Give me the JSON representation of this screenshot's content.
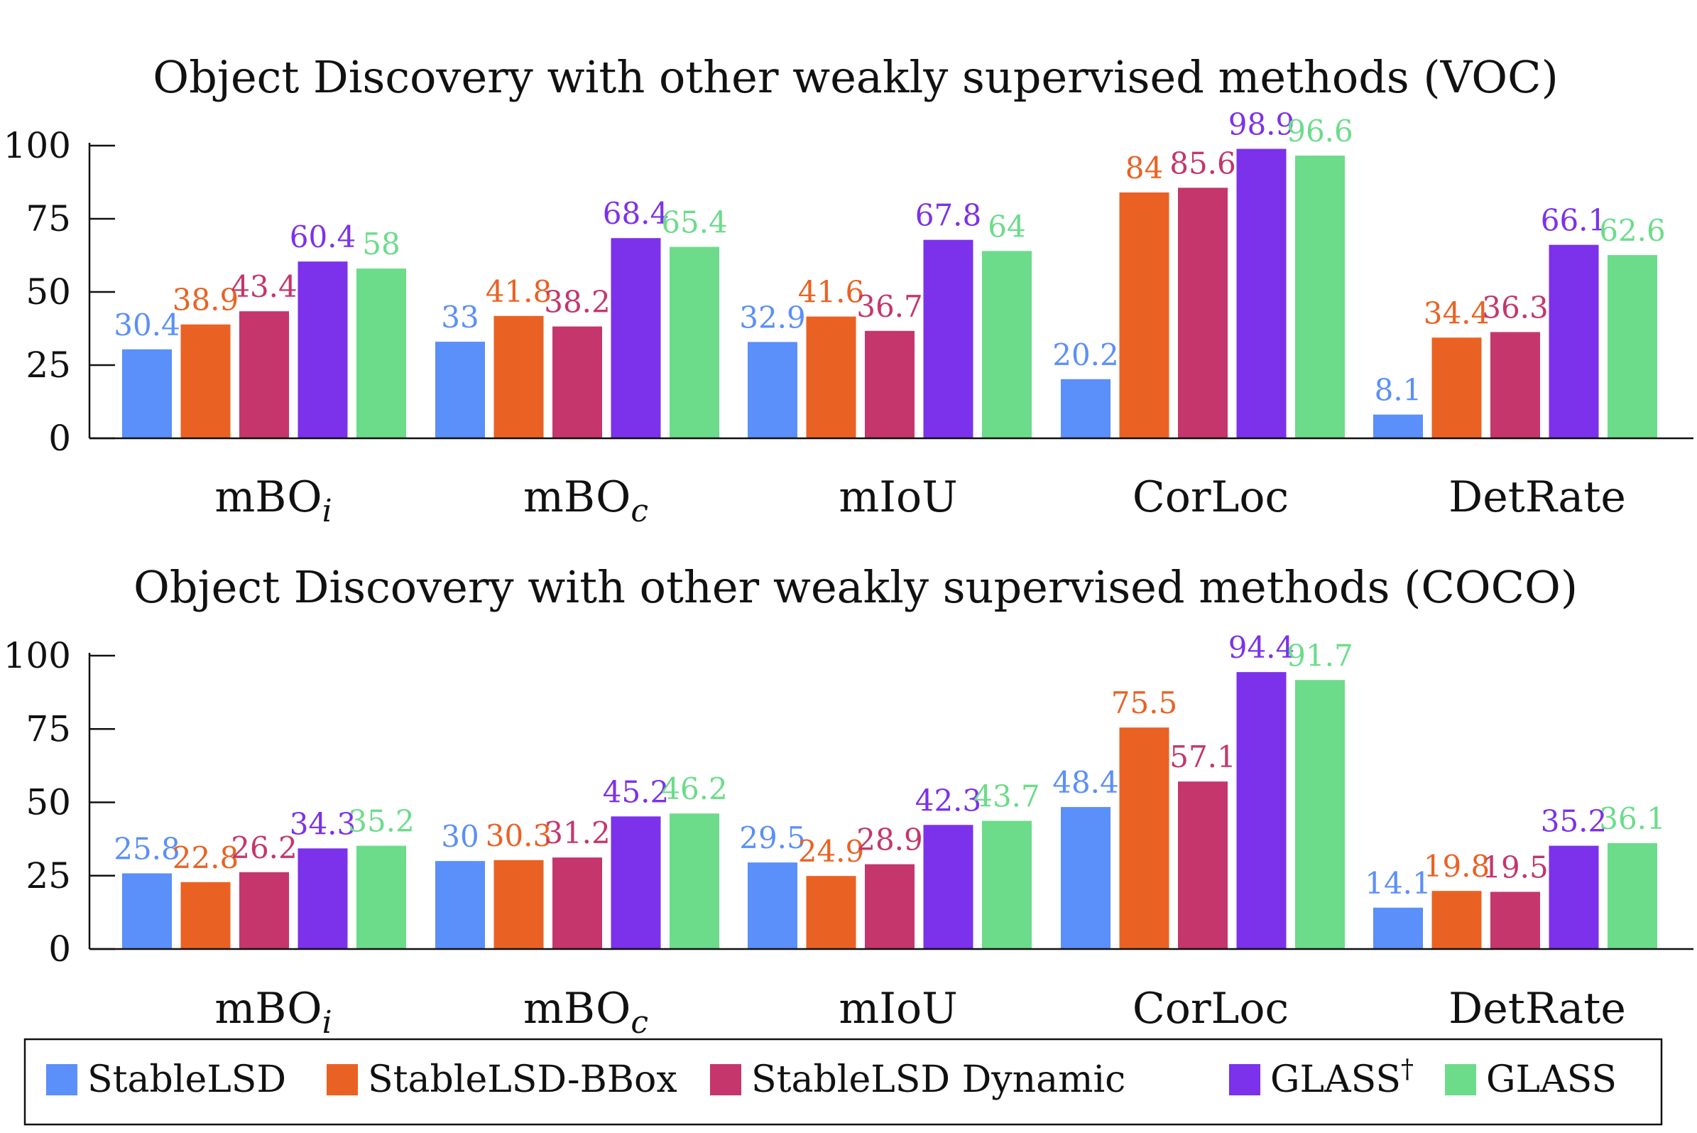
{
  "chart_data": [
    {
      "type": "bar",
      "title": "Object Discovery with other weakly supervised methods (VOC)",
      "categories": [
        "mBO",
        "mBO",
        "mIoU",
        "CorLoc",
        "DetRate"
      ],
      "category_subscripts": [
        "i",
        "c",
        "",
        "",
        ""
      ],
      "yticks": [
        "0",
        "25",
        "50",
        "75",
        "100"
      ],
      "ylim": [
        0,
        100
      ],
      "grid": false,
      "series": [
        {
          "name": "StableLSD",
          "values": [
            30.4,
            33,
            32.9,
            20.2,
            8.1
          ],
          "labels": [
            "30.4",
            "33",
            "32.9",
            "20.2",
            "8.1"
          ]
        },
        {
          "name": "StableLSD-BBox",
          "values": [
            38.9,
            41.8,
            41.6,
            84,
            34.4
          ],
          "labels": [
            "38.9",
            "41.8",
            "41.6",
            "84",
            "34.4"
          ]
        },
        {
          "name": "StableLSD Dynamic",
          "values": [
            43.4,
            38.2,
            36.7,
            85.6,
            36.3
          ],
          "labels": [
            "43.4",
            "38.2",
            "36.7",
            "85.6",
            "36.3"
          ]
        },
        {
          "name": "GLASS†",
          "values": [
            60.4,
            68.4,
            67.8,
            98.9,
            66.1
          ],
          "labels": [
            "60.4",
            "68.4",
            "67.8",
            "98.9",
            "66.1"
          ]
        },
        {
          "name": "GLASS",
          "values": [
            58,
            65.4,
            64,
            96.6,
            62.6
          ],
          "labels": [
            "58",
            "65.4",
            "64",
            "96.6",
            "62.6"
          ]
        }
      ]
    },
    {
      "type": "bar",
      "title": "Object Discovery with other weakly supervised methods (COCO)",
      "categories": [
        "mBO",
        "mBO",
        "mIoU",
        "CorLoc",
        "DetRate"
      ],
      "category_subscripts": [
        "i",
        "c",
        "",
        "",
        ""
      ],
      "yticks": [
        "0",
        "25",
        "50",
        "75",
        "100"
      ],
      "ylim": [
        0,
        100
      ],
      "grid": false,
      "series": [
        {
          "name": "StableLSD",
          "values": [
            25.8,
            30,
            29.5,
            48.4,
            14.1
          ],
          "labels": [
            "25.8",
            "30",
            "29.5",
            "48.4",
            "14.1"
          ]
        },
        {
          "name": "StableLSD-BBox",
          "values": [
            22.8,
            30.3,
            24.9,
            75.5,
            19.8
          ],
          "labels": [
            "22.8",
            "30.3",
            "24.9",
            "75.5",
            "19.8"
          ]
        },
        {
          "name": "StableLSD Dynamic",
          "values": [
            26.2,
            31.2,
            28.9,
            57.1,
            19.5
          ],
          "labels": [
            "26.2",
            "31.2",
            "28.9",
            "57.1",
            "19.5"
          ]
        },
        {
          "name": "GLASS†",
          "values": [
            34.3,
            45.2,
            42.3,
            94.4,
            35.2
          ],
          "labels": [
            "34.3",
            "45.2",
            "42.3",
            "94.4",
            "35.2"
          ]
        },
        {
          "name": "GLASS",
          "values": [
            35.2,
            46.2,
            43.7,
            91.7,
            36.1
          ],
          "labels": [
            "35.2",
            "46.2",
            "43.7",
            "91.7",
            "36.1"
          ]
        }
      ]
    }
  ],
  "legend": {
    "placement": "bottom",
    "items": [
      {
        "label": "StableLSD",
        "color": "#5b8ff9"
      },
      {
        "label": "StableLSD-BBox",
        "color": "#ea6223"
      },
      {
        "label": "StableLSD Dynamic",
        "color": "#c5366c"
      },
      {
        "label": "GLASS",
        "sup": "†",
        "color": "#7c31eb"
      },
      {
        "label": "GLASS",
        "color": "#6cdc8a"
      }
    ]
  },
  "colors": [
    "#5b8ff9",
    "#ea6223",
    "#c5366c",
    "#7c31eb",
    "#6cdc8a"
  ]
}
